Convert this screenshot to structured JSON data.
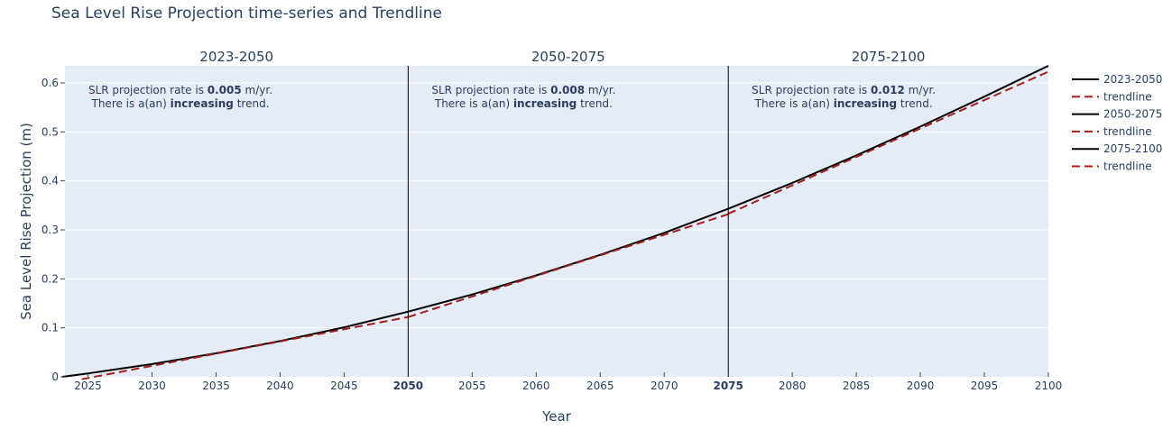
{
  "chart_data": {
    "type": "line",
    "title": "Sea Level Rise Projection time-series and Trendline",
    "xlabel": "Year",
    "ylabel": "Sea Level Rise Projection (m)",
    "xlim": [
      2023.2,
      2100
    ],
    "ylim": [
      0,
      0.635
    ],
    "grid": true,
    "legend_position": "top-right-outside",
    "x_ticks": [
      2025,
      2030,
      2035,
      2040,
      2045,
      2050,
      2055,
      2060,
      2065,
      2070,
      2075,
      2080,
      2085,
      2090,
      2095,
      2100
    ],
    "x_ticks_bold": [
      2050,
      2075
    ],
    "y_ticks": [
      0,
      0.1,
      0.2,
      0.3,
      0.4,
      0.5,
      0.6
    ],
    "y_tick_labels": [
      "0",
      "0.1",
      "0.2",
      "0.3",
      "0.4",
      "0.5",
      "0.6"
    ],
    "dividers": [
      2050,
      2075
    ],
    "segments": [
      {
        "title": "2023-2050",
        "annotation_line1_prefix": "SLR projection rate is ",
        "annotation_rate": "0.005",
        "annotation_line1_suffix": " m/yr.",
        "annotation_line2_prefix": "There is a(an) ",
        "annotation_trend": "increasing",
        "annotation_line2_suffix": " trend."
      },
      {
        "title": "2050-2075",
        "annotation_line1_prefix": "SLR projection rate is ",
        "annotation_rate": "0.008",
        "annotation_line1_suffix": " m/yr.",
        "annotation_line2_prefix": "There is a(an) ",
        "annotation_trend": "increasing",
        "annotation_line2_suffix": " trend."
      },
      {
        "title": "2075-2100",
        "annotation_line1_prefix": "SLR projection rate is ",
        "annotation_rate": "0.012",
        "annotation_line1_suffix": " m/yr.",
        "annotation_line2_prefix": "There is a(an) ",
        "annotation_trend": "increasing",
        "annotation_line2_suffix": " trend."
      }
    ],
    "series": [
      {
        "name": "2023-2050",
        "style": "solid",
        "color": "#000000",
        "x": [
          2023,
          2025,
          2030,
          2035,
          2040,
          2045,
          2050
        ],
        "y": [
          0.0,
          0.007,
          0.026,
          0.048,
          0.073,
          0.101,
          0.133
        ]
      },
      {
        "name": "trendline",
        "style": "dash",
        "color": "#a31f1f",
        "x": [
          2024.5,
          2050
        ],
        "y": [
          -0.005,
          0.122
        ]
      },
      {
        "name": "2050-2075",
        "style": "solid",
        "color": "#000000",
        "x": [
          2050,
          2055,
          2060,
          2065,
          2070,
          2075
        ],
        "y": [
          0.133,
          0.168,
          0.207,
          0.249,
          0.294,
          0.343
        ]
      },
      {
        "name": "trendline",
        "style": "dash",
        "color": "#a31f1f",
        "x": [
          2050,
          2075
        ],
        "y": [
          0.122,
          0.332
        ]
      },
      {
        "name": "2075-2100",
        "style": "solid",
        "color": "#000000",
        "x": [
          2075,
          2080,
          2085,
          2090,
          2095,
          2100
        ],
        "y": [
          0.343,
          0.396,
          0.452,
          0.511,
          0.572,
          0.635
        ]
      },
      {
        "name": "trendline",
        "style": "dash",
        "color": "#a31f1f",
        "x": [
          2075,
          2100
        ],
        "y": [
          0.333,
          0.623
        ]
      }
    ]
  },
  "colors": {
    "plot_bg": "#e5ecf6",
    "grid": "#ffffff",
    "solid": "#000000",
    "trend": "#a31f1f",
    "divider": "#000000"
  }
}
